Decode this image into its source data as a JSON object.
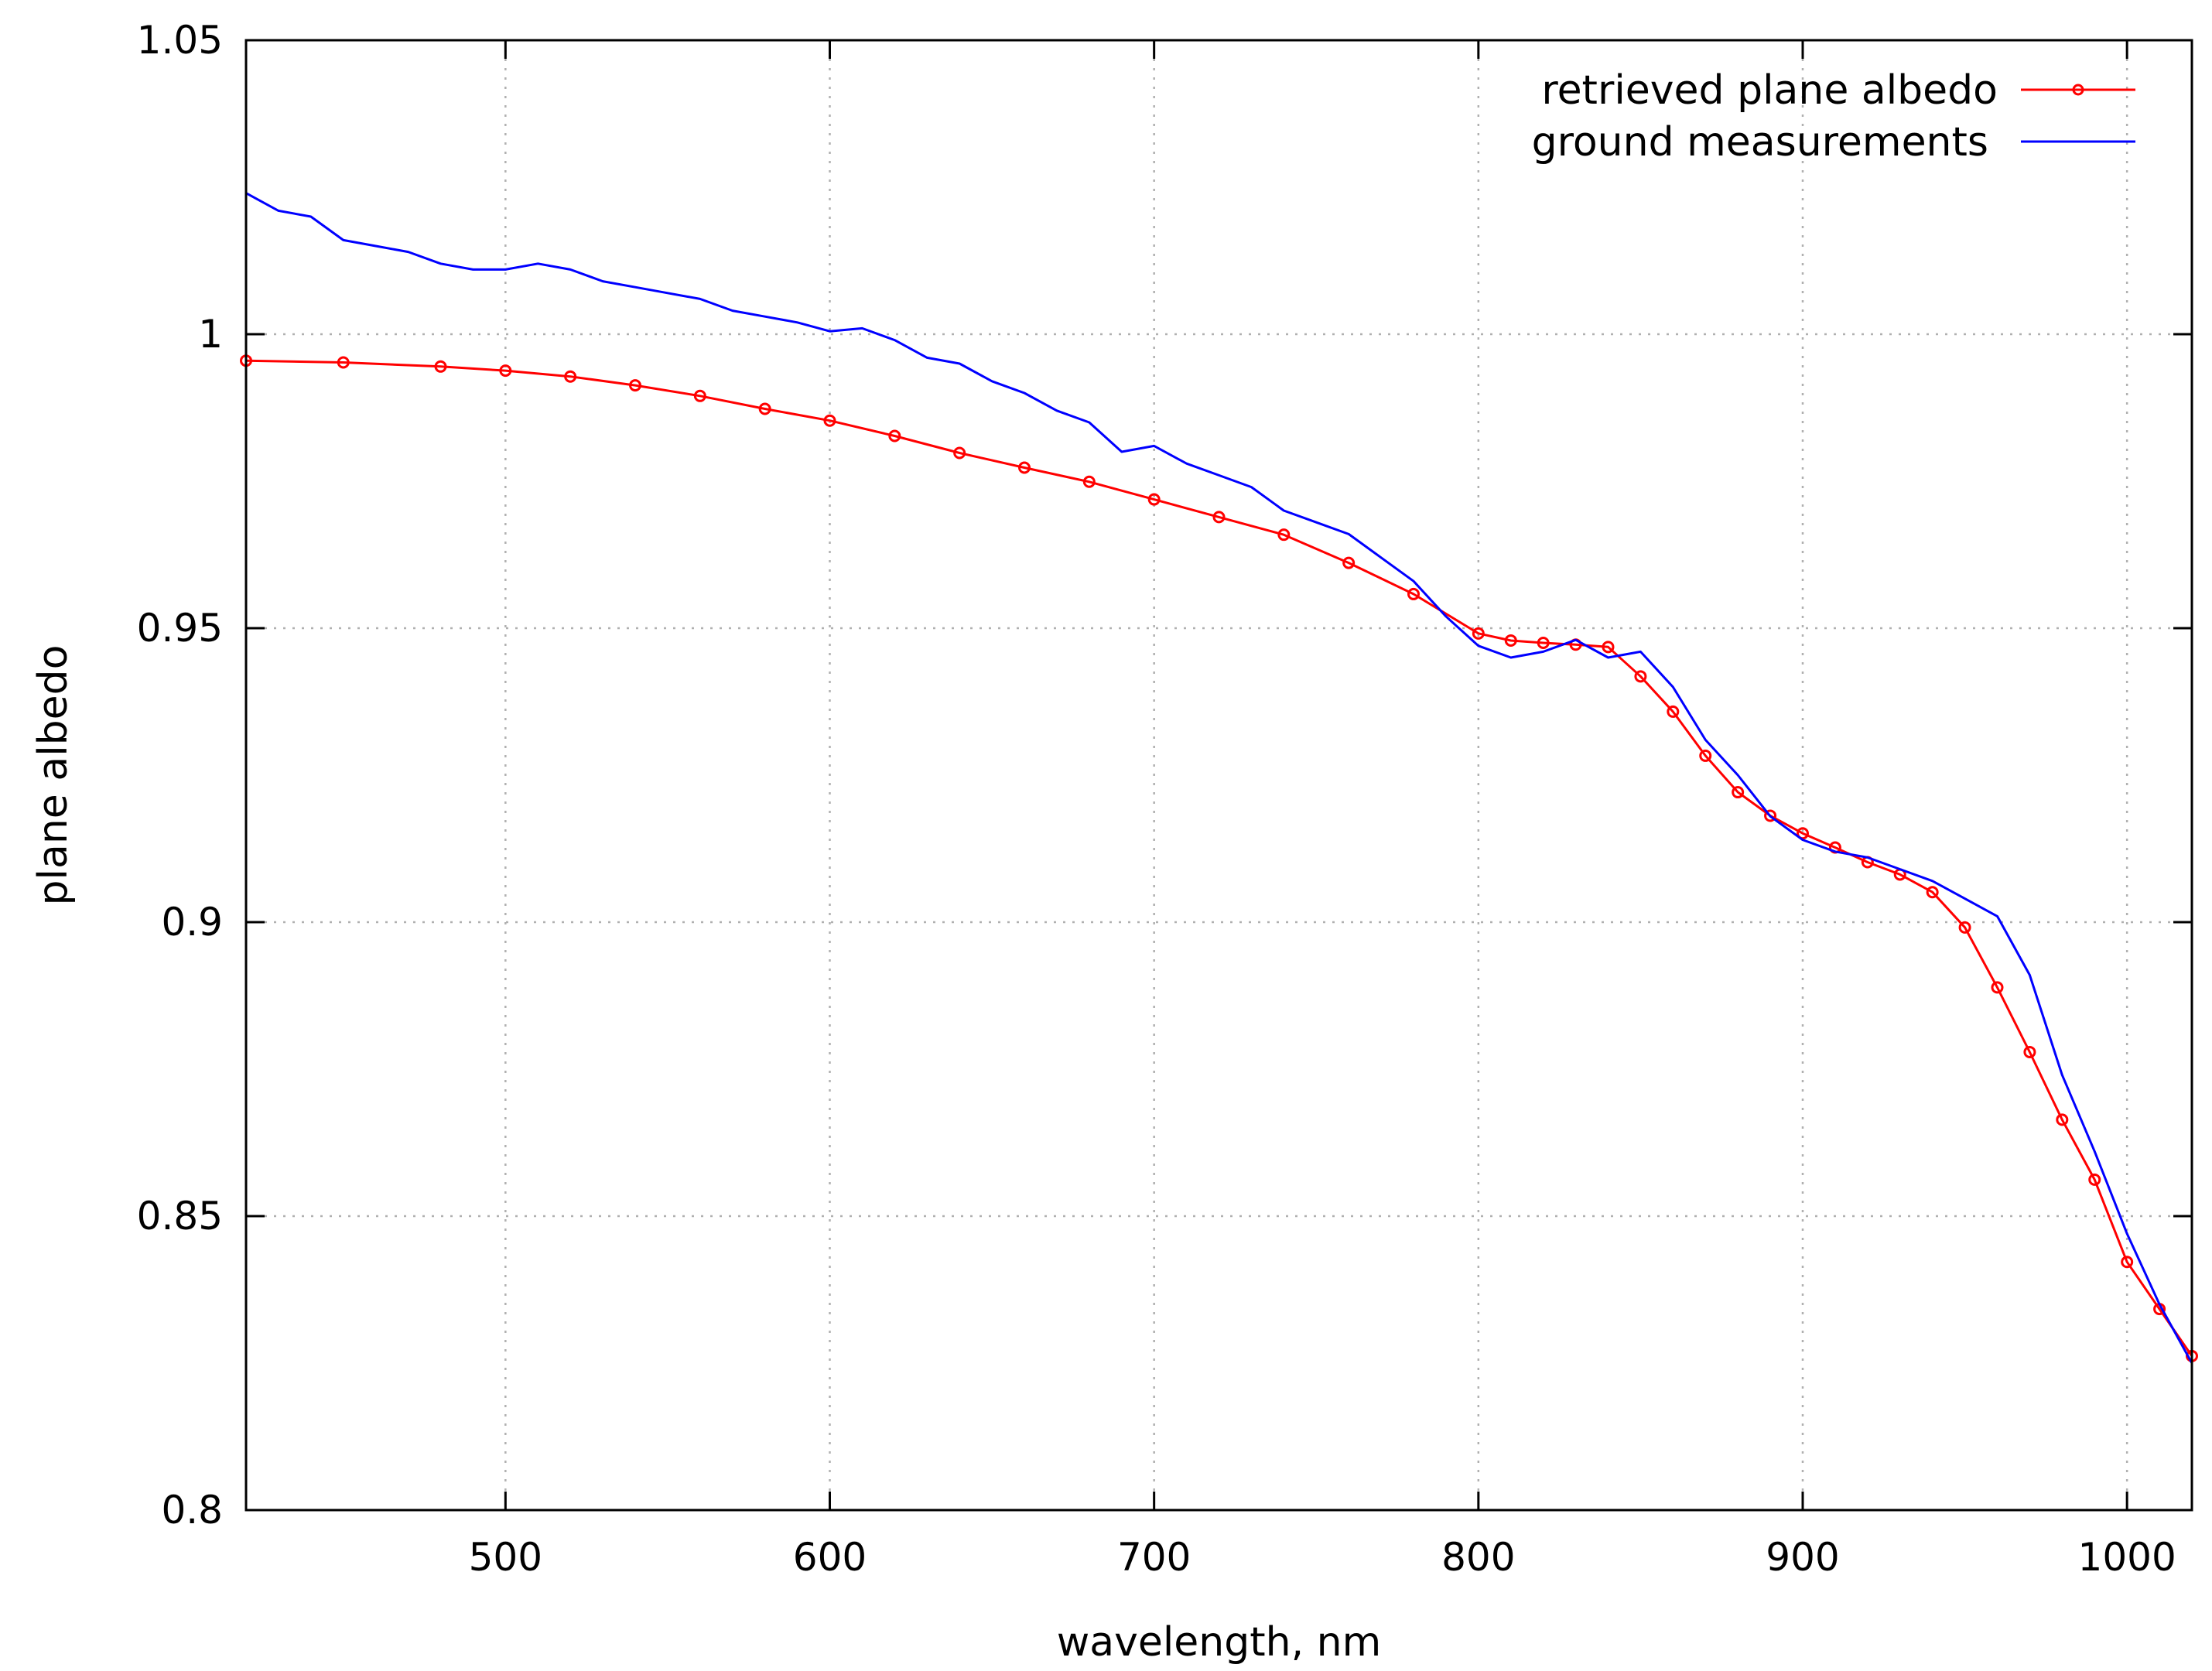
{
  "chart_data": {
    "type": "line",
    "title": "",
    "xlabel": "wavelength, nm",
    "ylabel": "plane albedo",
    "xlim": [
      420,
      1020
    ],
    "ylim": [
      0.8,
      1.05
    ],
    "xticks": [
      500,
      600,
      700,
      800,
      900,
      1000
    ],
    "xtick_labels": [
      "500",
      "600",
      "700",
      "800",
      "900",
      "1000"
    ],
    "yticks": [
      0.8,
      0.85,
      0.9,
      0.95,
      1.0,
      1.05
    ],
    "ytick_labels": [
      "0.8",
      "0.85",
      "0.9",
      "0.95",
      "1",
      "1.05"
    ],
    "grid": true,
    "legend_position": "top-right",
    "colors": {
      "retrieved": "#ff0000",
      "ground": "#0000ff",
      "grid": "#b0b0b0",
      "axis": "#000000"
    },
    "series": [
      {
        "name": "retrieved plane albedo",
        "style": "line-with-circle-markers",
        "color": "#ff0000",
        "x": [
          420,
          450,
          480,
          500,
          520,
          540,
          560,
          580,
          600,
          620,
          640,
          660,
          680,
          700,
          720,
          740,
          760,
          780,
          800,
          810,
          820,
          830,
          840,
          850,
          860,
          870,
          880,
          890,
          900,
          910,
          920,
          930,
          940,
          950,
          960,
          970,
          980,
          990,
          1000,
          1010,
          1020
        ],
        "values": [
          0.9955,
          0.9952,
          0.9945,
          0.9938,
          0.9928,
          0.9913,
          0.9895,
          0.9873,
          0.9853,
          0.9827,
          0.9798,
          0.9773,
          0.9749,
          0.9719,
          0.9689,
          0.9659,
          0.9611,
          0.9558,
          0.9491,
          0.9479,
          0.9475,
          0.9472,
          0.9468,
          0.9418,
          0.9358,
          0.9283,
          0.9221,
          0.9181,
          0.9151,
          0.9127,
          0.9102,
          0.9081,
          0.9051,
          0.8991,
          0.8889,
          0.8779,
          0.8664,
          0.8562,
          0.8422,
          0.8342,
          0.8262
        ]
      },
      {
        "name": "ground measurements",
        "style": "line",
        "color": "#0000ff",
        "x": [
          420,
          430,
          440,
          450,
          460,
          470,
          480,
          490,
          500,
          510,
          520,
          530,
          540,
          550,
          560,
          570,
          580,
          590,
          600,
          610,
          620,
          630,
          640,
          650,
          660,
          670,
          680,
          690,
          700,
          710,
          720,
          730,
          740,
          750,
          760,
          770,
          780,
          790,
          800,
          810,
          820,
          830,
          840,
          850,
          860,
          870,
          880,
          890,
          900,
          910,
          920,
          930,
          940,
          950,
          960,
          970,
          980,
          990,
          1000,
          1010,
          1020
        ],
        "values": [
          1.024,
          1.021,
          1.02,
          1.016,
          1.015,
          1.014,
          1.012,
          1.011,
          1.011,
          1.012,
          1.011,
          1.009,
          1.008,
          1.007,
          1.006,
          1.004,
          1.003,
          1.002,
          1.0005,
          1.001,
          0.999,
          0.996,
          0.995,
          0.992,
          0.99,
          0.987,
          0.985,
          0.98,
          0.981,
          0.978,
          0.976,
          0.974,
          0.97,
          0.968,
          0.966,
          0.962,
          0.958,
          0.952,
          0.947,
          0.945,
          0.946,
          0.948,
          0.945,
          0.946,
          0.94,
          0.931,
          0.925,
          0.918,
          0.914,
          0.912,
          0.911,
          0.909,
          0.907,
          0.904,
          0.901,
          0.891,
          0.874,
          0.861,
          0.847,
          0.835,
          0.825
        ]
      }
    ]
  }
}
